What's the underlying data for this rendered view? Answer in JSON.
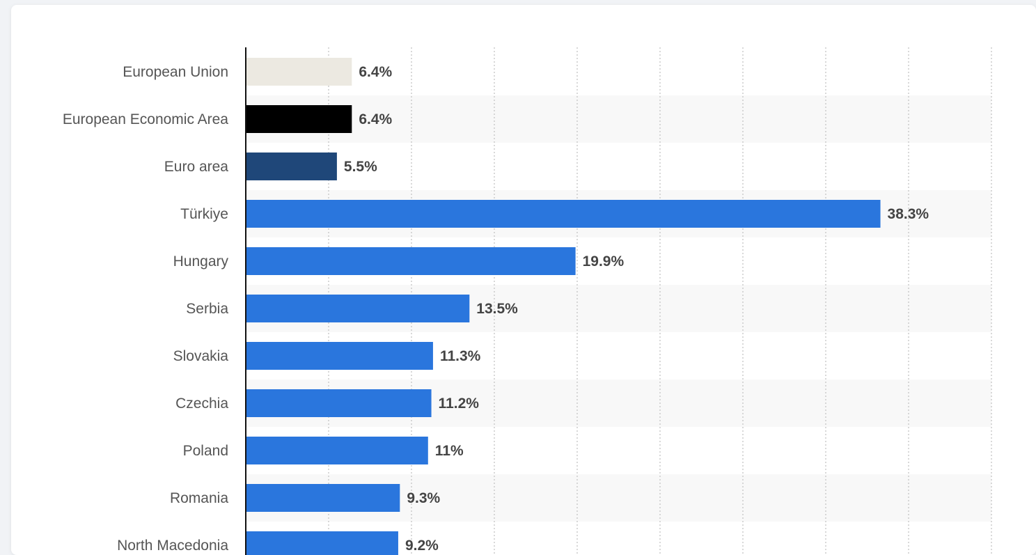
{
  "chart_data": {
    "type": "bar",
    "orientation": "horizontal",
    "categories": [
      "European Union",
      "European Economic Area",
      "Euro area",
      "Türkiye",
      "Hungary",
      "Serbia",
      "Slovakia",
      "Czechia",
      "Poland",
      "Romania",
      "North Macedonia"
    ],
    "values": [
      6.4,
      6.4,
      5.5,
      38.3,
      19.9,
      13.5,
      11.3,
      11.2,
      11,
      9.3,
      9.2
    ],
    "value_labels": [
      "6.4%",
      "6.4%",
      "5.5%",
      "38.3%",
      "19.9%",
      "13.5%",
      "11.3%",
      "11.2%",
      "11%",
      "9.3%",
      "9.2%"
    ],
    "bar_colors": [
      "#ece9e1",
      "#000000",
      "#1f4779",
      "#2a76dd",
      "#2a76dd",
      "#2a76dd",
      "#2a76dd",
      "#2a76dd",
      "#2a76dd",
      "#2a76dd",
      "#2a76dd"
    ],
    "xlim": [
      0,
      45
    ],
    "x_gridlines": [
      5,
      10,
      15,
      20,
      25,
      30,
      35,
      40,
      45
    ],
    "grid": true,
    "title": "",
    "xlabel": "",
    "ylabel": ""
  }
}
